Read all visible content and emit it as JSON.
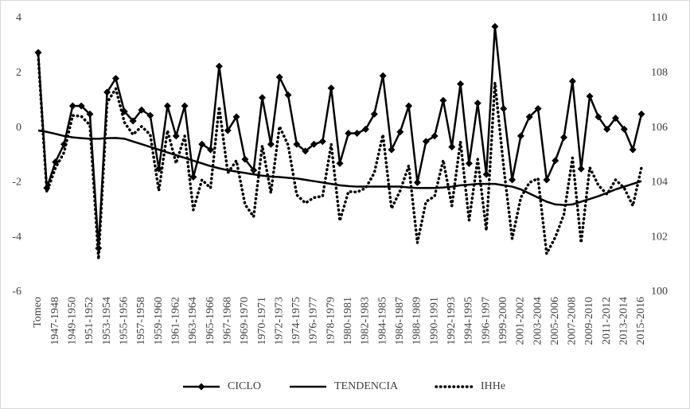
{
  "chart_data": {
    "type": "line",
    "categories": [
      "Tomeo",
      null,
      "1947-1948",
      null,
      "1949-1950",
      null,
      "1951-1952",
      null,
      "1953-1954",
      null,
      "1955-1956",
      null,
      "1957-1958",
      null,
      "1959-1960",
      null,
      "1961-1962",
      null,
      "1963-1964",
      null,
      "1965-1966",
      null,
      "1967-1968",
      null,
      "1969-1970",
      null,
      "1970-1971",
      null,
      "1972-1973",
      null,
      "1974-1975",
      null,
      "1976-1977",
      null,
      "1978-1979",
      null,
      "1980-1981",
      null,
      "1982-1983",
      null,
      "1984-1985",
      null,
      "1986-1987",
      null,
      "1988-1989",
      null,
      "1990-1991",
      null,
      "1992-1993",
      null,
      "1994-1995",
      null,
      "1996-1997",
      null,
      "1999-2000",
      null,
      "2001-2002",
      null,
      "2003-2004",
      null,
      "2005-2006",
      null,
      "2007-2008",
      null,
      "2009-2010",
      null,
      "2011-2012",
      null,
      "2013-2014",
      null,
      "2015-2016"
    ],
    "series": [
      {
        "name": "CICLO",
        "color": "#000000",
        "style": "marker",
        "values": [
          2.75,
          -2.2,
          -1.25,
          -0.6,
          0.8,
          0.8,
          0.5,
          -4.4,
          1.3,
          1.8,
          0.6,
          0.25,
          0.65,
          0.45,
          -1.5,
          0.8,
          -0.3,
          0.8,
          -1.8,
          -0.6,
          -0.8,
          2.25,
          -0.1,
          0.4,
          -1.15,
          -1.55,
          1.1,
          -0.6,
          1.85,
          1.2,
          -0.6,
          -0.85,
          -0.6,
          -0.5,
          1.45,
          -1.3,
          -0.2,
          -0.2,
          -0.05,
          0.5,
          1.9,
          -0.8,
          -0.15,
          0.8,
          -2,
          -0.5,
          -0.3,
          1.0,
          -0.7,
          1.6,
          -1.3,
          0.9,
          -1.7,
          3.7,
          0.7,
          -1.9,
          -0.3,
          0.4,
          0.7,
          -1.9,
          -1.2,
          -0.35,
          1.7,
          -1.5,
          1.15,
          0.4,
          -0.05,
          0.35,
          -0.05,
          -0.8,
          0.5
        ]
      },
      {
        "name": "TENDENCIA",
        "color": "#000000",
        "style": "solid",
        "axis": "y2",
        "values": [
          105.9,
          105.85,
          105.78,
          105.7,
          105.65,
          105.62,
          105.6,
          105.6,
          105.62,
          105.63,
          105.6,
          105.5,
          105.4,
          105.3,
          105.2,
          105.1,
          105.0,
          104.9,
          104.8,
          104.7,
          104.6,
          104.52,
          104.45,
          104.4,
          104.35,
          104.3,
          104.25,
          104.22,
          104.2,
          104.17,
          104.15,
          104.1,
          104.05,
          104.0,
          103.95,
          103.9,
          103.87,
          103.85,
          103.85,
          103.85,
          103.85,
          103.85,
          103.85,
          103.82,
          103.8,
          103.8,
          103.8,
          103.82,
          103.85,
          103.9,
          103.92,
          103.95,
          103.95,
          103.95,
          103.9,
          103.85,
          103.75,
          103.6,
          103.45,
          103.3,
          103.2,
          103.18,
          103.2,
          103.3,
          103.4,
          103.5,
          103.62,
          103.75,
          103.85,
          103.95,
          104.05
        ]
      },
      {
        "name": "IHHe",
        "color": "#000000",
        "style": "dotted",
        "axis": "y2",
        "values": [
          108.65,
          103.65,
          104.53,
          105.1,
          106.45,
          106.42,
          106.1,
          101.2,
          106.92,
          107.43,
          106.2,
          105.75,
          106.05,
          105.75,
          103.7,
          105.9,
          104.7,
          105.7,
          103.0,
          104.1,
          103.8,
          106.77,
          104.35,
          104.8,
          103.2,
          102.75,
          105.35,
          103.62,
          106.05,
          105.37,
          103.55,
          103.25,
          103.45,
          103.5,
          105.4,
          102.6,
          103.67,
          103.65,
          103.8,
          104.35,
          105.75,
          103.05,
          103.7,
          104.62,
          101.8,
          103.3,
          103.5,
          104.82,
          103.15,
          105.5,
          102.62,
          104.85,
          102.25,
          107.65,
          104.6,
          101.95,
          103.45,
          104.0,
          104.15,
          101.4,
          102.0,
          102.83,
          104.9,
          101.8,
          104.55,
          103.9,
          103.57,
          104.1,
          103.8,
          103.15,
          104.55
        ]
      }
    ],
    "ylim": [
      -6,
      4
    ],
    "yticks": [
      -6,
      -4,
      -2,
      0,
      2,
      4
    ],
    "y2lim": [
      100,
      110
    ],
    "y2ticks": [
      100,
      102,
      104,
      106,
      108,
      110
    ],
    "grid": false,
    "legend": "bottom"
  }
}
